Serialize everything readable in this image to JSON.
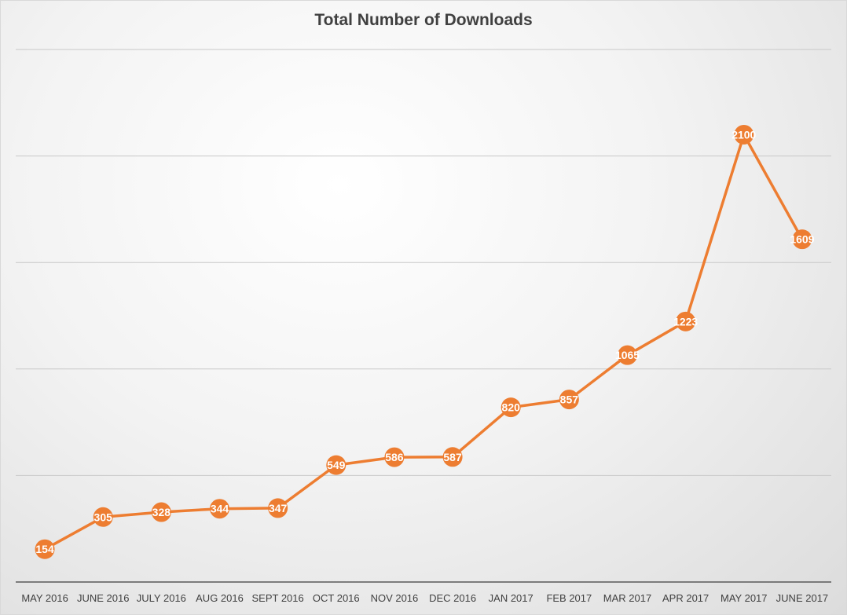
{
  "chart_data": {
    "type": "line",
    "title": "Total Number of Downloads",
    "xlabel": "",
    "ylabel": "",
    "categories": [
      "MAY 2016",
      "JUNE 2016",
      "JULY 2016",
      "AUG 2016",
      "SEPT 2016",
      "OCT 2016",
      "NOV 2016",
      "DEC 2016",
      "JAN 2017",
      "FEB 2017",
      "MAR 2017",
      "APR 2017",
      "MAY 2017",
      "JUNE 2017"
    ],
    "series": [
      {
        "values": [
          154,
          305,
          328,
          344,
          347,
          549,
          586,
          587,
          820,
          857,
          1065,
          1223,
          2100,
          1609
        ]
      }
    ],
    "ylim": [
      0,
      2500
    ],
    "gridlines": [
      500,
      1000,
      1500,
      2000,
      2500
    ],
    "grid": true,
    "legend": "none",
    "line_color": "#ED7D31",
    "label_color": "#FFFFFF"
  }
}
